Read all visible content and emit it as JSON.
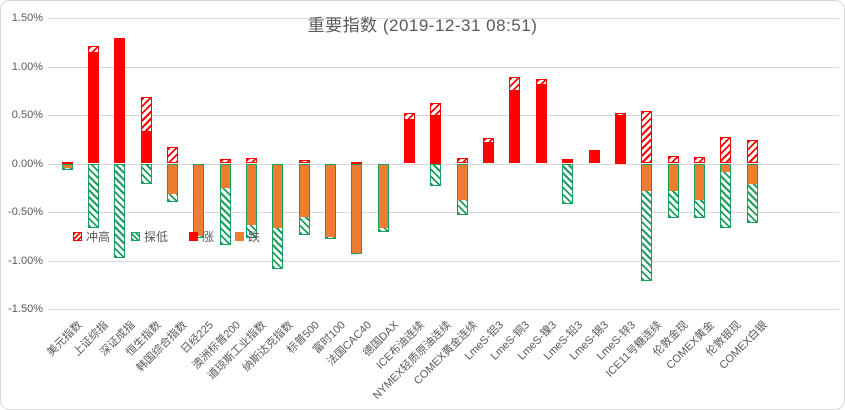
{
  "chart_data": {
    "type": "bar",
    "title": "重要指数 (2019-12-31 08:51)",
    "subtitle": "",
    "categories": [
      "美元指数",
      "上证综指",
      "深证成指",
      "恒生指数",
      "韩国综合指数",
      "日经225",
      "澳洲标普200",
      "道琼斯工业指数",
      "纳斯达克指数",
      "标普500",
      "富时100",
      "法国CAC40",
      "德国DAX",
      "ICE布油连续",
      "NYMEX轻质原油连续",
      "COMEX黄金连续",
      "LmeS-铝3",
      "LmeS-铜3",
      "LmeS-镍3",
      "LmeS-铅3",
      "LmeS-锡3",
      "LmeS-锌3",
      "ICE11号糖连续",
      "伦敦金现",
      "COMEX黄金",
      "伦敦银现",
      "COMEX白银"
    ],
    "series": [
      {
        "name": "冲高",
        "style": "hatch-red",
        "values": [
          0.02,
          1.21,
          1.29,
          0.69,
          0.17,
          0,
          0.05,
          0.06,
          0,
          0.04,
          0,
          0.02,
          0,
          0.52,
          0.62,
          0.06,
          0.26,
          0.89,
          0.87,
          0.05,
          0.14,
          0.52,
          0.54,
          0.08,
          0.07,
          0.27,
          0.24
        ]
      },
      {
        "name": "探低",
        "style": "hatch-green",
        "values": [
          -0.07,
          -0.67,
          -0.97,
          -0.21,
          -0.4,
          -0.77,
          -0.84,
          -0.77,
          -1.09,
          -0.74,
          -0.78,
          -0.93,
          -0.71,
          0,
          -0.23,
          -0.53,
          0,
          0,
          0,
          -0.42,
          0,
          0,
          -1.21,
          -0.56,
          -0.56,
          -0.67,
          -0.61
        ]
      },
      {
        "name": "涨",
        "style": "solid-red",
        "values": [
          0.01,
          1.15,
          1.29,
          0.34,
          0,
          0,
          0,
          0,
          0,
          0,
          0,
          0,
          0,
          0.46,
          0.5,
          0,
          0.22,
          0.76,
          0.82,
          0.05,
          0.14,
          0.5,
          0,
          0,
          0,
          0,
          0
        ]
      },
      {
        "name": "跌",
        "style": "solid-orange",
        "values": [
          -0.05,
          0,
          0,
          0,
          -0.31,
          -0.75,
          -0.25,
          -0.63,
          -0.67,
          -0.55,
          -0.76,
          -0.92,
          -0.66,
          0,
          0,
          -0.38,
          0,
          0,
          0,
          0,
          0,
          0,
          -0.28,
          -0.28,
          -0.38,
          -0.09,
          -0.21
        ]
      }
    ],
    "ylabel": "",
    "xlabel": "",
    "ylim": [
      -1.5,
      1.5
    ],
    "yticks": [
      {
        "label": "1.50%",
        "value": 1.5
      },
      {
        "label": "1.00%",
        "value": 1.0
      },
      {
        "label": "0.50%",
        "value": 0.5
      },
      {
        "label": "0.00%",
        "value": 0.0
      },
      {
        "label": "-0.50%",
        "value": -0.5
      },
      {
        "label": "-1.00%",
        "value": -1.0
      },
      {
        "label": "-1.50%",
        "value": -1.5
      }
    ],
    "grid": true,
    "legend_position": "inside-lower-left",
    "colors": {
      "rise_red": "#FF0000",
      "fall_orange": "#ED7D31",
      "low_green": "#1A9E5C",
      "grid": "#D9D9D9",
      "text": "#595959",
      "background": "#FFFFFF"
    }
  }
}
